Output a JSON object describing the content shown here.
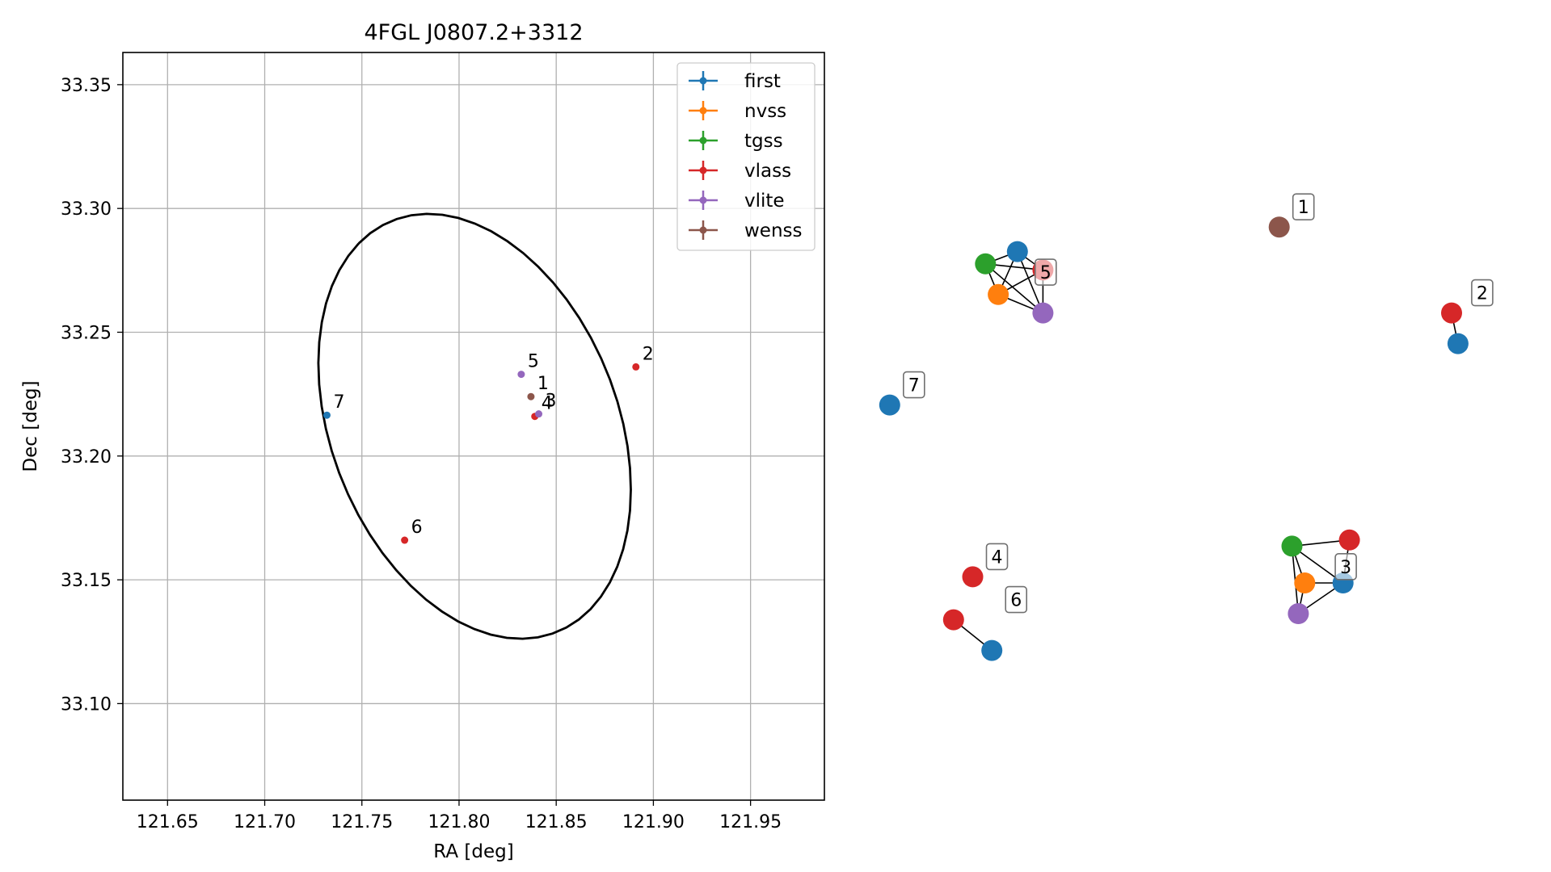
{
  "chart_data": {
    "type": "scatter",
    "title": "4FGL J0807.2+3312",
    "xlabel": "RA [deg]",
    "ylabel": "Dec [deg]",
    "xlim": [
      121.627,
      121.988
    ],
    "ylim": [
      33.061,
      33.363
    ],
    "xticks": [
      121.65,
      121.7,
      121.75,
      121.8,
      121.85,
      121.9,
      121.95
    ],
    "yticks": [
      33.1,
      33.15,
      33.2,
      33.25,
      33.3,
      33.35
    ],
    "xtick_labels": [
      "121.65",
      "121.70",
      "121.75",
      "121.80",
      "121.85",
      "121.90",
      "121.95"
    ],
    "ytick_labels": [
      "33.10",
      "33.15",
      "33.20",
      "33.25",
      "33.30",
      "33.35"
    ],
    "grid": true,
    "legend_position": "upper right",
    "colors": {
      "first": "#1f77b4",
      "nvss": "#ff7f0e",
      "tgss": "#2ca02c",
      "vlass": "#d62728",
      "vlite": "#9467bd",
      "wenss": "#8c564b"
    },
    "series": [
      {
        "name": "first",
        "points": [
          {
            "x": 121.732,
            "y": 33.2165
          }
        ]
      },
      {
        "name": "nvss",
        "points": []
      },
      {
        "name": "tgss",
        "points": []
      },
      {
        "name": "vlass",
        "points": [
          {
            "x": 121.891,
            "y": 33.236
          },
          {
            "x": 121.839,
            "y": 33.216
          },
          {
            "x": 121.772,
            "y": 33.166
          }
        ]
      },
      {
        "name": "vlite",
        "points": [
          {
            "x": 121.832,
            "y": 33.233
          },
          {
            "x": 121.841,
            "y": 33.217
          }
        ]
      },
      {
        "name": "wenss",
        "points": [
          {
            "x": 121.837,
            "y": 33.224
          }
        ]
      }
    ],
    "point_labels": [
      {
        "text": "1",
        "x": 121.837,
        "y": 33.224
      },
      {
        "text": "2",
        "x": 121.891,
        "y": 33.236
      },
      {
        "text": "3",
        "x": 121.841,
        "y": 33.217
      },
      {
        "text": "4",
        "x": 121.839,
        "y": 33.216
      },
      {
        "text": "5",
        "x": 121.832,
        "y": 33.233
      },
      {
        "text": "6",
        "x": 121.772,
        "y": 33.166
      },
      {
        "text": "7",
        "x": 121.732,
        "y": 33.2165
      }
    ],
    "ellipse": {
      "center_ra": 121.808,
      "center_dec": 33.212,
      "semi_major_deg": 0.095,
      "semi_minor_deg": 0.0695,
      "angle_deg": 129
    },
    "network": {
      "description": "graph of matched sources",
      "clusters": [
        {
          "label": "1",
          "nodes": [
            {
              "id": "a",
              "cat": "wenss",
              "x": 0.63,
              "y": 0.12
            }
          ],
          "edges": []
        },
        {
          "label": "2",
          "nodes": [
            {
              "id": "a",
              "cat": "vlass",
              "x": 0.9,
              "y": 0.26
            },
            {
              "id": "b",
              "cat": "first",
              "x": 0.91,
              "y": 0.31
            }
          ],
          "edges": [
            [
              "a",
              "b"
            ]
          ]
        },
        {
          "label": "3",
          "nodes": [
            {
              "id": "g",
              "cat": "tgss",
              "x": 0.65,
              "y": 0.64
            },
            {
              "id": "r",
              "cat": "vlass",
              "x": 0.74,
              "y": 0.63
            },
            {
              "id": "o",
              "cat": "nvss",
              "x": 0.67,
              "y": 0.7
            },
            {
              "id": "b",
              "cat": "first",
              "x": 0.73,
              "y": 0.7
            },
            {
              "id": "p",
              "cat": "vlite",
              "x": 0.66,
              "y": 0.75
            }
          ],
          "edges": [
            [
              "g",
              "r"
            ],
            [
              "g",
              "o"
            ],
            [
              "g",
              "b"
            ],
            [
              "g",
              "p"
            ],
            [
              "o",
              "b"
            ],
            [
              "o",
              "p"
            ],
            [
              "b",
              "p"
            ],
            [
              "r",
              "b"
            ]
          ]
        },
        {
          "label": "4",
          "nodes": [
            {
              "id": "a",
              "cat": "vlass",
              "x": 0.15,
              "y": 0.69
            }
          ],
          "edges": []
        },
        {
          "label": "5",
          "nodes": [
            {
              "id": "b",
              "cat": "first",
              "x": 0.22,
              "y": 0.16
            },
            {
              "id": "g",
              "cat": "tgss",
              "x": 0.17,
              "y": 0.18
            },
            {
              "id": "r",
              "cat": "vlass",
              "x": 0.26,
              "y": 0.19
            },
            {
              "id": "o",
              "cat": "nvss",
              "x": 0.19,
              "y": 0.23
            },
            {
              "id": "p",
              "cat": "vlite",
              "x": 0.26,
              "y": 0.26
            }
          ],
          "edges": [
            [
              "b",
              "g"
            ],
            [
              "b",
              "r"
            ],
            [
              "b",
              "o"
            ],
            [
              "b",
              "p"
            ],
            [
              "g",
              "o"
            ],
            [
              "g",
              "p"
            ],
            [
              "g",
              "r"
            ],
            [
              "o",
              "p"
            ],
            [
              "o",
              "r"
            ],
            [
              "r",
              "p"
            ]
          ]
        },
        {
          "label": "6",
          "nodes": [
            {
              "id": "a",
              "cat": "vlass",
              "x": 0.12,
              "y": 0.76
            },
            {
              "id": "b",
              "cat": "first",
              "x": 0.18,
              "y": 0.81
            }
          ],
          "edges": [
            [
              "a",
              "b"
            ]
          ]
        },
        {
          "label": "7",
          "nodes": [
            {
              "id": "a",
              "cat": "first",
              "x": 0.02,
              "y": 0.41
            }
          ],
          "edges": []
        }
      ]
    }
  }
}
